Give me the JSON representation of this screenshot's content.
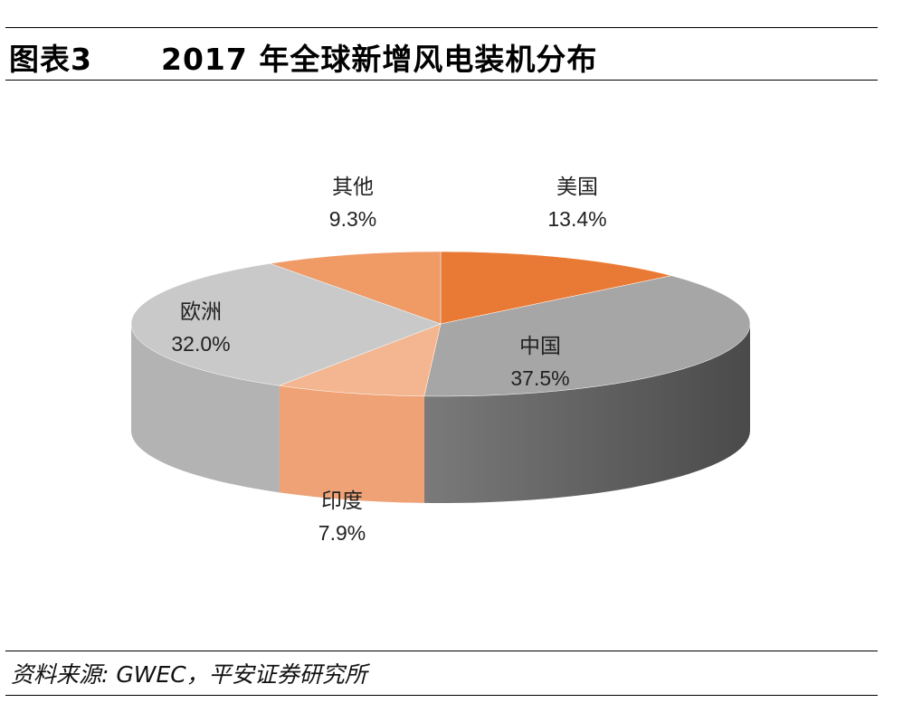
{
  "header": {
    "figure_label": "图表3",
    "title": "2017 年全球新增风电装机分布"
  },
  "footer": {
    "source": "资料来源: GWEC，平安证券研究所"
  },
  "colors": {
    "china_top": "#a6a6a6",
    "china_side_light": "#7a7a7a",
    "china_side_dark": "#4a4a4a",
    "usa": "#e87a36",
    "other": "#f09a66",
    "europe": "#c9c9c9",
    "europe_side": "#b3b3b3",
    "india": "#f4b690",
    "india_side": "#eea276",
    "rules": "#000000"
  },
  "chart_data": {
    "type": "pie",
    "style": "3d",
    "slices": [
      {
        "label": "美国",
        "value": 13.4,
        "display": "13.4%"
      },
      {
        "label": "中国",
        "value": 37.5,
        "display": "37.5%"
      },
      {
        "label": "印度",
        "value": 7.9,
        "display": "7.9%"
      },
      {
        "label": "欧洲",
        "value": 32.0,
        "display": "32.0%"
      },
      {
        "label": "其他",
        "value": 9.3,
        "display": "9.3%"
      }
    ]
  }
}
